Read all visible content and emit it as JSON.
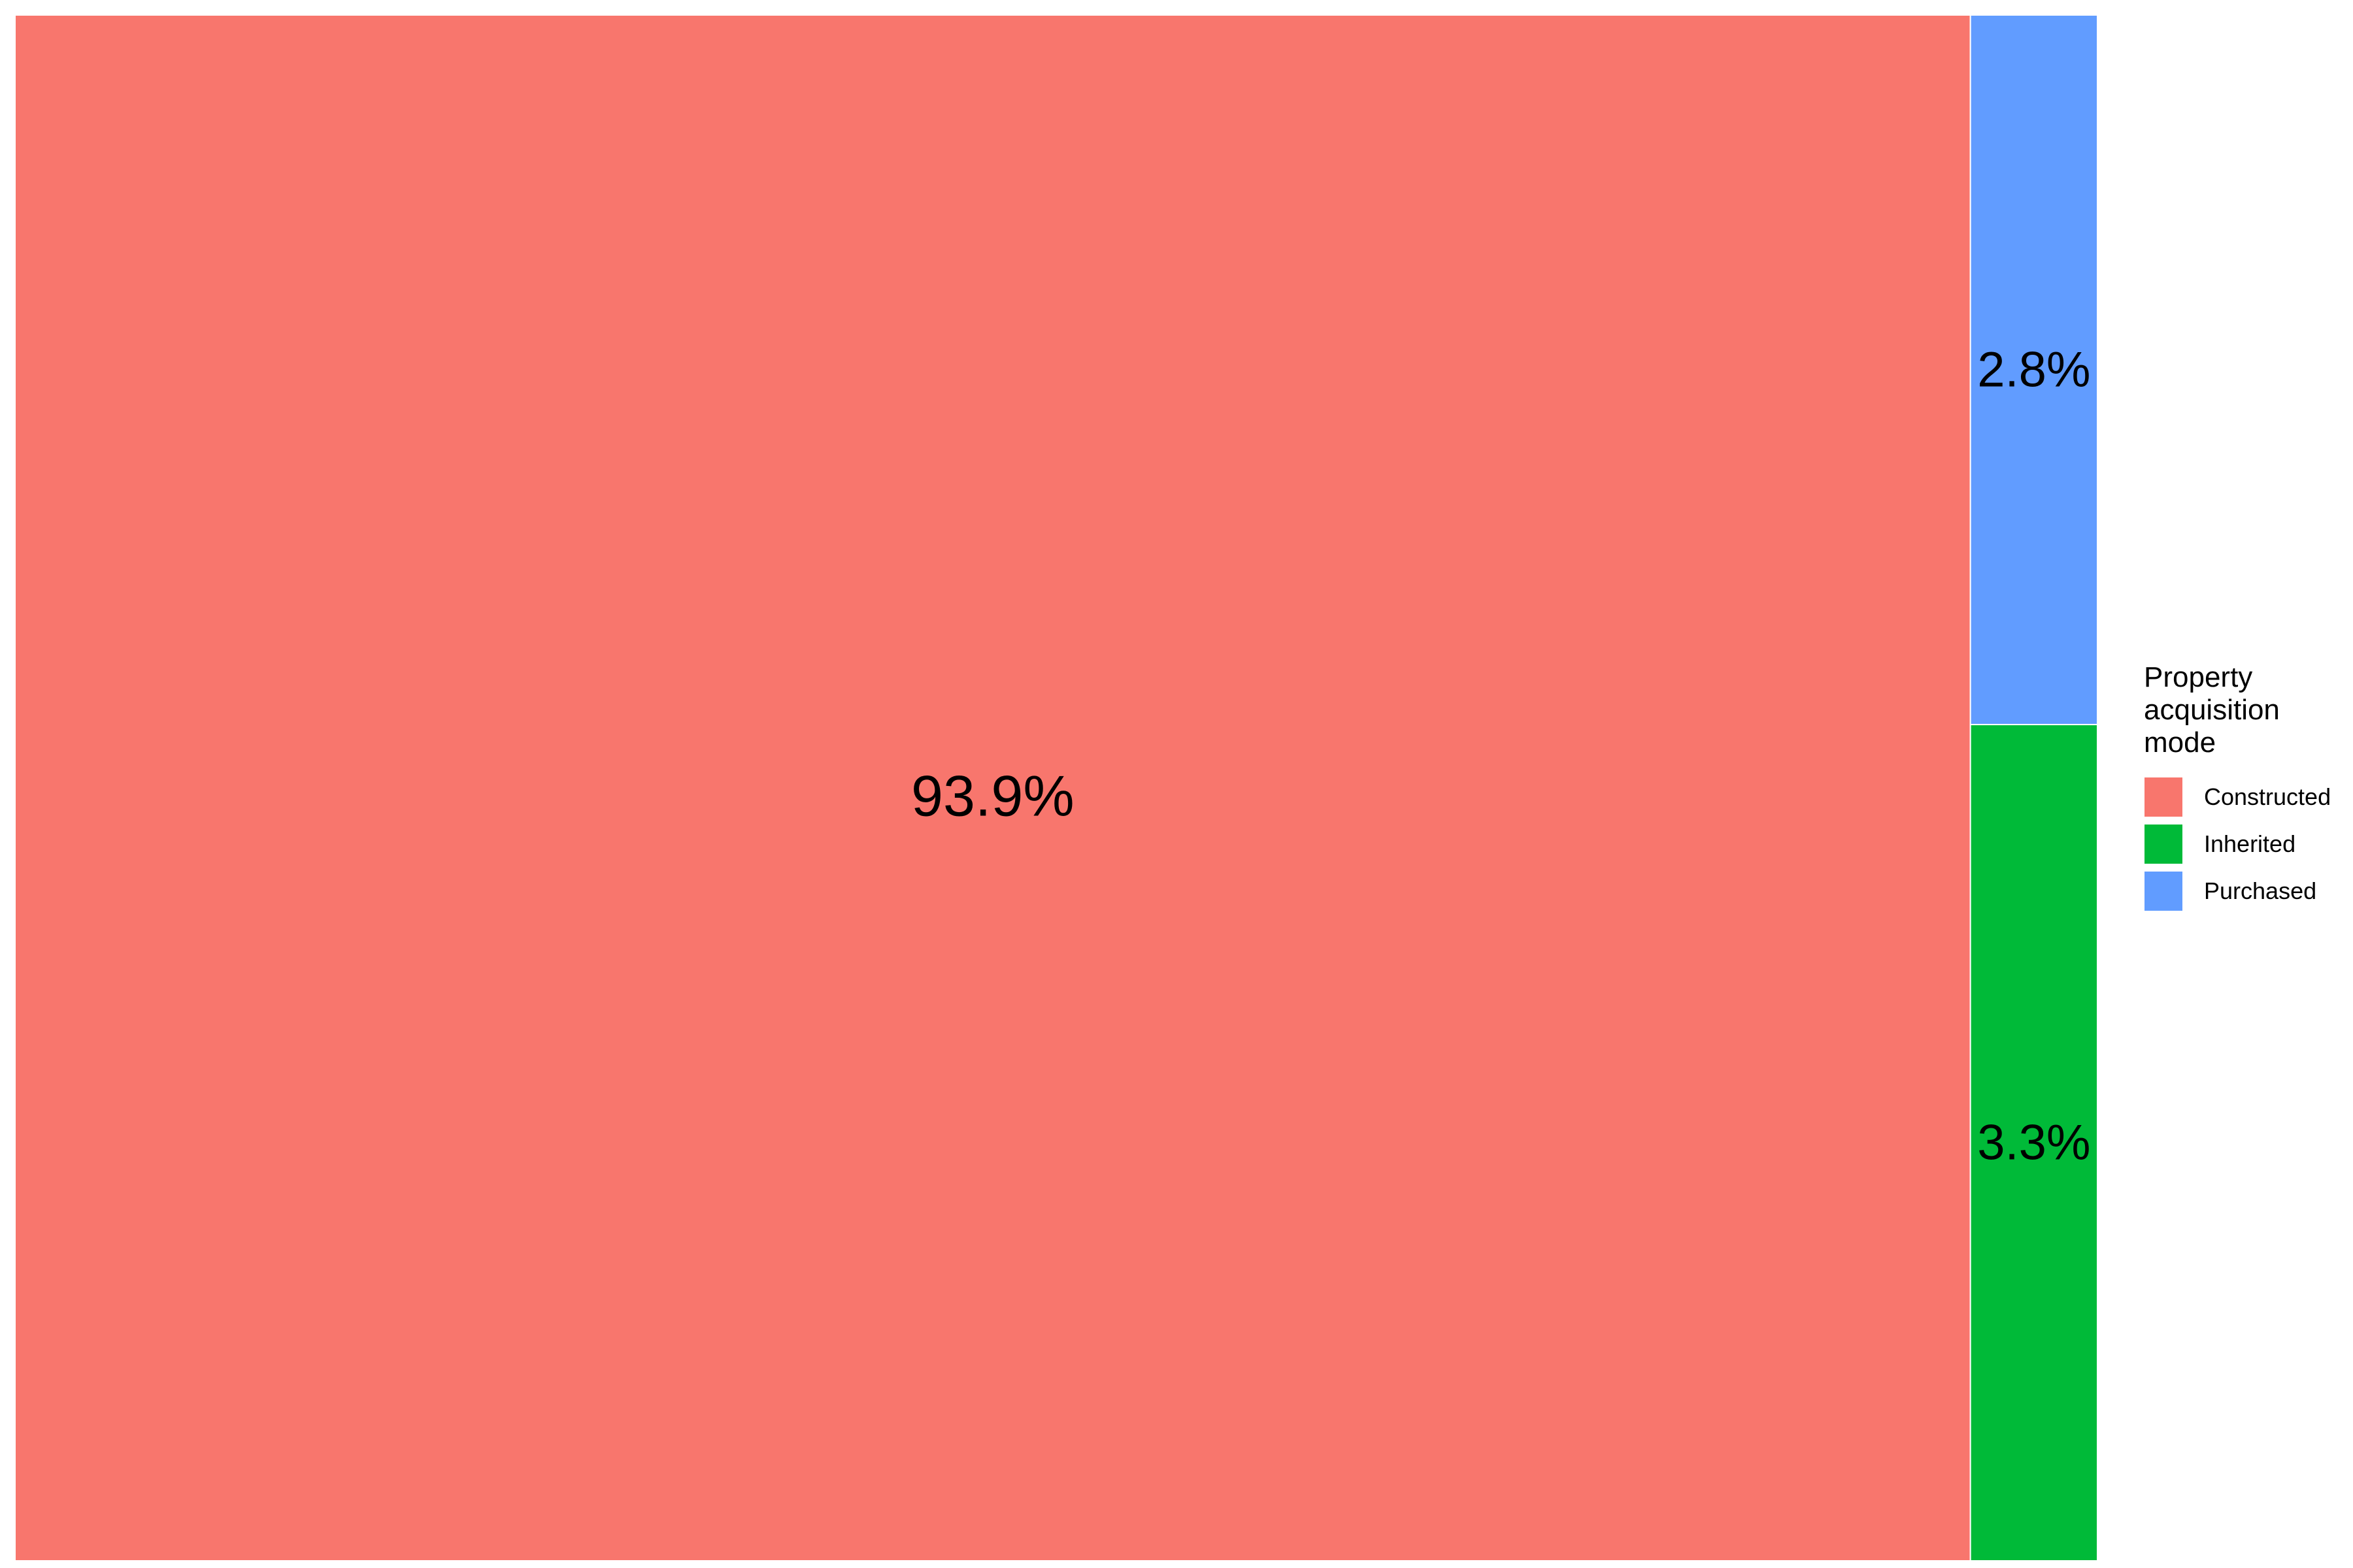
{
  "chart_data": {
    "type": "treemap",
    "title": "",
    "legend_title": "Property\nacquisition\nmode",
    "legend_position": "right",
    "items": [
      {
        "name": "Constructed",
        "percent": 93.9,
        "label": "93.9%",
        "color": "#F8766D"
      },
      {
        "name": "Inherited",
        "percent": 3.3,
        "label": "3.3%",
        "color": "#00BA38"
      },
      {
        "name": "Purchased",
        "percent": 2.8,
        "label": "2.8%",
        "color": "#619CFF"
      }
    ]
  }
}
